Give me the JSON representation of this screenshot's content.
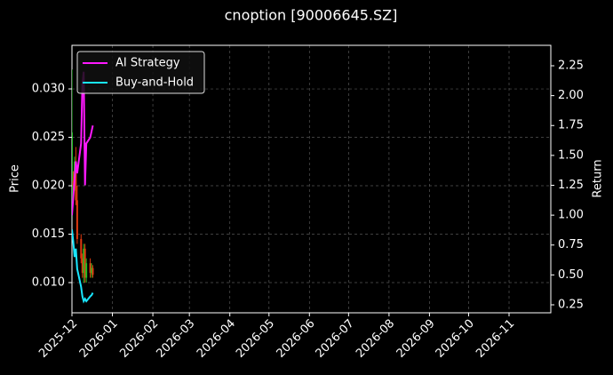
{
  "chart_data": {
    "type": "candlestick",
    "title": "cnoption [90006645.SZ]",
    "ylabel": "Price",
    "y2label": "Return",
    "x": [
      "2025-12-01",
      "2025-12-02",
      "2025-12-03",
      "2025-12-04",
      "2025-12-05",
      "2025-12-08",
      "2025-12-09",
      "2025-12-10",
      "2025-12-11",
      "2025-12-12",
      "2025-12-15",
      "2025-12-16",
      "2025-12-17"
    ],
    "open": [
      0.0175,
      0.0205,
      0.02,
      0.0225,
      0.0185,
      0.0145,
      0.0125,
      0.011,
      0.0135,
      0.0105,
      0.012,
      0.011,
      0.0115
    ],
    "high": [
      0.032,
      0.0215,
      0.023,
      0.024,
      0.02,
      0.015,
      0.013,
      0.014,
      0.014,
      0.0125,
      0.0125,
      0.012,
      0.0118
    ],
    "low": [
      0.017,
      0.019,
      0.0195,
      0.018,
      0.014,
      0.012,
      0.0105,
      0.01,
      0.01,
      0.01,
      0.0105,
      0.0105,
      0.0105
    ],
    "close": [
      0.0255,
      0.02,
      0.0225,
      0.0185,
      0.0145,
      0.0125,
      0.011,
      0.0135,
      0.0105,
      0.012,
      0.011,
      0.0115,
      0.0108
    ],
    "up_color": "#22c022",
    "down_color": "#e03a10",
    "series": [
      {
        "name": "AI Strategy",
        "color": "#ff19ff",
        "axis": "y2",
        "values": [
          1.0,
          1.15,
          1.3,
          1.45,
          1.35,
          1.6,
          2.1,
          2.2,
          1.25,
          1.6,
          1.65,
          1.7,
          1.75
        ]
      },
      {
        "name": "Buy-and-Hold",
        "color": "#19e6ff",
        "axis": "y2",
        "values": [
          0.88,
          0.78,
          0.65,
          0.72,
          0.55,
          0.4,
          0.32,
          0.28,
          0.3,
          0.28,
          0.32,
          0.33,
          0.35
        ]
      }
    ],
    "xlim": [
      "2025-12-01",
      "2026-12-03"
    ],
    "xticks": [
      "2025-12",
      "2026-01",
      "2026-02",
      "2026-03",
      "2026-04",
      "2026-05",
      "2026-06",
      "2026-07",
      "2026-08",
      "2026-09",
      "2026-10",
      "2026-11"
    ],
    "ylim": [
      0.00688,
      0.0345
    ],
    "yticks": [
      {
        "value": 0.01,
        "label": "0.010"
      },
      0.015,
      {
        "value": 0.02,
        "label": "0.020"
      },
      0.025,
      {
        "value": 0.03,
        "label": "0.030"
      }
    ],
    "y2lim": [
      0.183,
      2.421
    ],
    "y2ticks": [
      0.25,
      {
        "value": 0.5,
        "label": "0.50"
      },
      0.75,
      {
        "value": 1.0,
        "label": "1.00"
      },
      1.25,
      {
        "value": 1.5,
        "label": "1.50"
      },
      1.75,
      {
        "value": 2.0,
        "label": "2.00"
      },
      2.25
    ],
    "grid": true,
    "legend": "upper left"
  }
}
